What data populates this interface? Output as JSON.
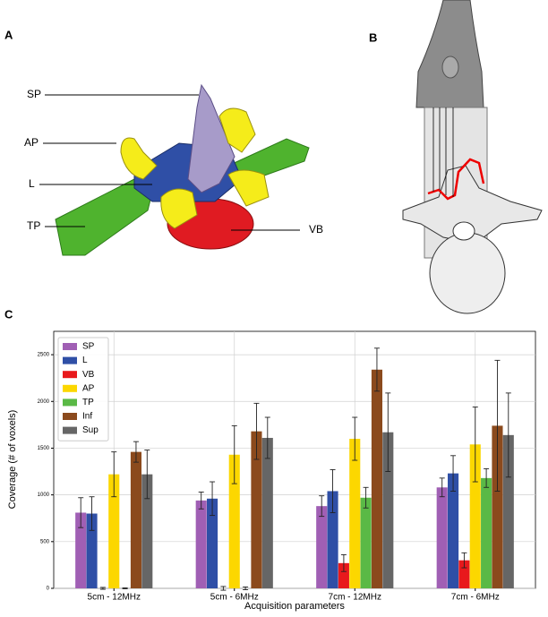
{
  "panel_labels": [
    "A",
    "B",
    "C"
  ],
  "panel_a": {
    "annotations": [
      "SP",
      "AP",
      "L",
      "TP",
      "VB"
    ]
  },
  "chart_data": {
    "type": "bar",
    "y_label": "Coverage (# of voxels)",
    "x_label": "Acquisition parameters",
    "categories": [
      "5cm - 12MHz",
      "5cm - 6MHz",
      "7cm - 12MHz",
      "7cm - 6MHz"
    ],
    "series": [
      {
        "name": "SP",
        "color": "#a05fb4",
        "values": [
          810,
          940,
          880,
          1080
        ],
        "errors": [
          160,
          90,
          110,
          100
        ]
      },
      {
        "name": "L",
        "color": "#2f4fa6",
        "values": [
          800,
          960,
          1040,
          1230
        ],
        "errors": [
          180,
          180,
          230,
          190
        ]
      },
      {
        "name": "VB",
        "color": "#e8191c",
        "values": [
          0,
          0,
          270,
          300
        ],
        "errors": [
          10,
          20,
          90,
          80
        ]
      },
      {
        "name": "AP",
        "color": "#fcd700",
        "values": [
          1220,
          1430,
          1600,
          1540
        ],
        "errors": [
          240,
          310,
          230,
          400
        ]
      },
      {
        "name": "TP",
        "color": "#5ab946",
        "values": [
          0,
          0,
          970,
          1180
        ],
        "errors": [
          5,
          15,
          110,
          100
        ]
      },
      {
        "name": "Inf",
        "color": "#8b4a1d",
        "values": [
          1460,
          1680,
          2340,
          1740
        ],
        "errors": [
          110,
          300,
          230,
          700
        ]
      },
      {
        "name": "Sup",
        "color": "#666666",
        "values": [
          1220,
          1610,
          1670,
          1640
        ],
        "errors": [
          260,
          220,
          420,
          450
        ]
      }
    ],
    "ylim": [
      0,
      2750
    ],
    "yticks": [
      0,
      500,
      1000,
      1500,
      2000,
      2500
    ],
    "grid": true,
    "legend": "upper-left"
  }
}
